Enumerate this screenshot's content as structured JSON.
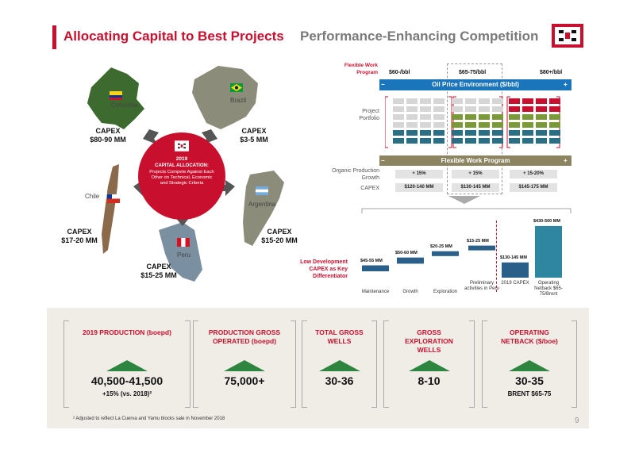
{
  "title": {
    "main": "Allocating Capital to Best Projects",
    "sub": "Performance-Enhancing Competition"
  },
  "colors": {
    "brand_red": "#c8102e",
    "oil_blue": "#1b75bb",
    "flex_olive": "#8c8461",
    "green": "#2e8540",
    "teal": "#2a6f86"
  },
  "maps": {
    "colombia": {
      "label": "Colombia",
      "capex_title": "CAPEX",
      "capex_value": "$80-90 MM"
    },
    "brazil": {
      "label": "Brazil",
      "capex_title": "CAPEX",
      "capex_value": "$3-5 MM"
    },
    "chile": {
      "label": "Chile",
      "capex_title": "CAPEX",
      "capex_value": "$17-20 MM"
    },
    "argentina": {
      "label": "Argentina",
      "capex_title": "CAPEX",
      "capex_value": "$15-20 MM"
    },
    "peru": {
      "label": "Peru",
      "capex_title": "CAPEX",
      "capex_value": "$15-25 MM"
    }
  },
  "center": {
    "year": "2019",
    "heading": "CAPITAL ALLOCATION:",
    "text": "Projects Compete Against Each Other on Technical, Economic and Strategic Criteria"
  },
  "program": {
    "flexible_label": "Flexible Work Program",
    "price_headers": [
      "$60-/bbl",
      "$65-75/bbl",
      "$80+/bbl"
    ],
    "oil_bar": "Oil Price Environment ($/bbl)",
    "project_portfolio": "Project Portfolio",
    "fwp_bar": "Flexible Work Program",
    "organic_label": "Organic Production Growth",
    "organic_values": [
      "+ 15%",
      "+ 15%",
      "+ 15-20%"
    ],
    "capex_label": "CAPEX",
    "capex_values": [
      "$120-140 MM",
      "$130-145 MM",
      "$145-175 MM"
    ]
  },
  "chart_data": {
    "type": "bar",
    "categories": [
      "Maintenance",
      "Growth",
      "Exploration",
      "Preliminary activities in Peru",
      "2019 CAPEX",
      "Operating Netback $65-75/Brent"
    ],
    "value_labels": [
      "$45-55 MM",
      "$50-60 MM",
      "$20-25 MM",
      "$15-25 MM",
      "$130-145 MM",
      "$430-500 MM"
    ],
    "values": [
      50,
      55,
      22,
      20,
      137,
      465
    ],
    "ylim": [
      0,
      500
    ]
  },
  "low_dev": "Low Development CAPEX as Key Differentiator",
  "stats": [
    {
      "title": "2019 PRODUCTION (boepd)",
      "value": "40,500-41,500",
      "sub": "+15% (vs. 2018)²"
    },
    {
      "title": "PRODUCTION GROSS OPERATED (boepd)",
      "value": "75,000+",
      "sub": ""
    },
    {
      "title": "TOTAL GROSS WELLS",
      "value": "30-36",
      "sub": ""
    },
    {
      "title": "GROSS EXPLORATION WELLS",
      "value": "8-10",
      "sub": ""
    },
    {
      "title": "OPERATING NETBACK ($/boe)",
      "value": "30-35",
      "sub": "BRENT $65-75"
    }
  ],
  "footnote": "² Adjusted to reflect La Cuerva and Yamu blocks sale in November 2018",
  "page_number": "9"
}
